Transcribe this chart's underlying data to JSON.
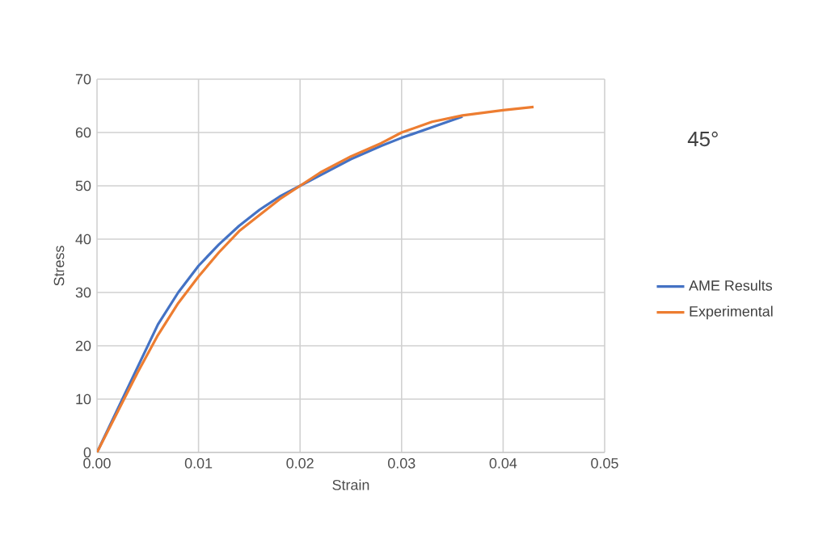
{
  "chart_data": {
    "type": "line",
    "title": "45°",
    "xlabel": "Strain",
    "ylabel": "Stress",
    "xlim": [
      0,
      0.05
    ],
    "ylim": [
      0,
      70
    ],
    "xticks": [
      {
        "value": 0,
        "label": "0.00"
      },
      {
        "value": 0.01,
        "label": "0.01"
      },
      {
        "value": 0.02,
        "label": "0.02"
      },
      {
        "value": 0.03,
        "label": "0.03"
      },
      {
        "value": 0.04,
        "label": "0.04"
      },
      {
        "value": 0.05,
        "label": "0.05"
      }
    ],
    "yticks": [
      0,
      10,
      20,
      30,
      40,
      50,
      60,
      70
    ],
    "grid": true,
    "legend": "right",
    "marker": "none",
    "line_style": "solid",
    "series": [
      {
        "name": "AME Results",
        "color": "#4472c4",
        "x": [
          0,
          0.002,
          0.004,
          0.006,
          0.008,
          0.01,
          0.012,
          0.014,
          0.016,
          0.018,
          0.02,
          0.022,
          0.025,
          0.028,
          0.03,
          0.033,
          0.036
        ],
        "values": [
          0,
          8,
          16,
          24,
          30,
          35,
          39,
          42.5,
          45.5,
          48,
          50,
          52,
          55,
          57.5,
          59,
          61,
          63
        ]
      },
      {
        "name": "Experimental",
        "color": "#ed7d31",
        "x": [
          0,
          0.002,
          0.004,
          0.006,
          0.008,
          0.01,
          0.012,
          0.014,
          0.016,
          0.018,
          0.02,
          0.022,
          0.025,
          0.028,
          0.03,
          0.033,
          0.036,
          0.04,
          0.043
        ],
        "values": [
          0,
          7.5,
          15,
          22,
          28,
          33,
          37.5,
          41.5,
          44.5,
          47.5,
          50,
          52.5,
          55.5,
          58,
          60,
          62,
          63.2,
          64.2,
          64.8
        ]
      }
    ]
  }
}
